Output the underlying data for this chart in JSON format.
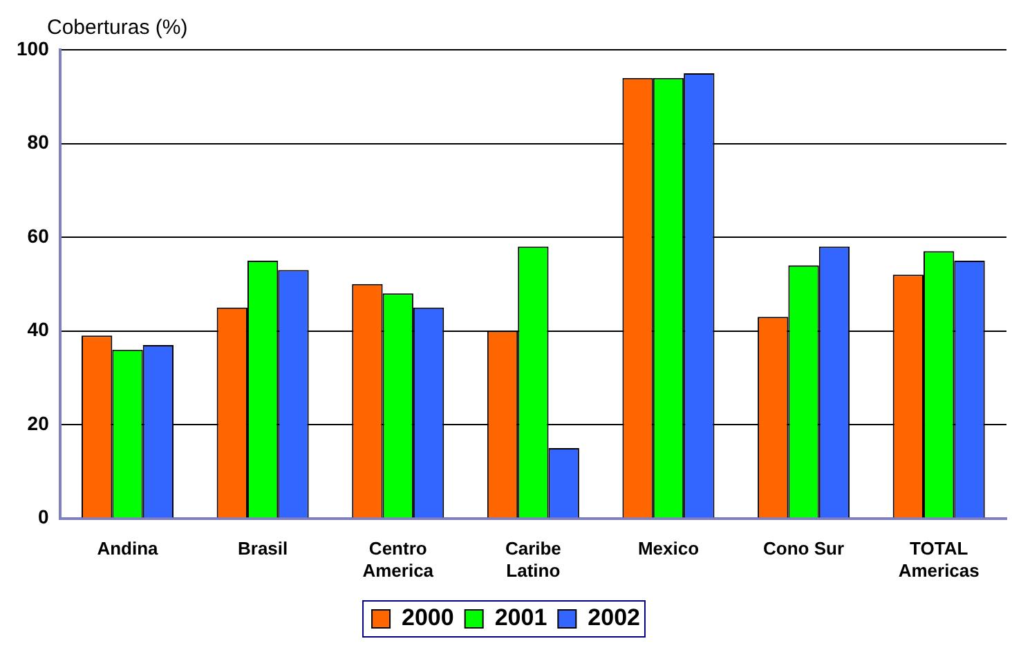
{
  "chart_data": {
    "type": "bar",
    "ylabel": "Coberturas (%)",
    "categories": [
      "Andina",
      "Brasil",
      "Centro\nAmerica",
      "Caribe\nLatino",
      "Mexico",
      "Cono Sur",
      "TOTAL\nAmericas"
    ],
    "series": [
      {
        "name": "2000",
        "color": "#ff6600",
        "values": [
          39,
          45,
          50,
          40,
          94,
          43,
          52
        ]
      },
      {
        "name": "2001",
        "color": "#00ff00",
        "values": [
          36,
          55,
          48,
          58,
          94,
          54,
          57
        ]
      },
      {
        "name": "2002",
        "color": "#3366ff",
        "values": [
          37,
          53,
          45,
          15,
          95,
          58,
          55
        ]
      }
    ],
    "ylim": [
      0,
      100
    ],
    "yticks": [
      0,
      20,
      40,
      60,
      80,
      100
    ],
    "grid": "y",
    "legend": "bottom"
  }
}
